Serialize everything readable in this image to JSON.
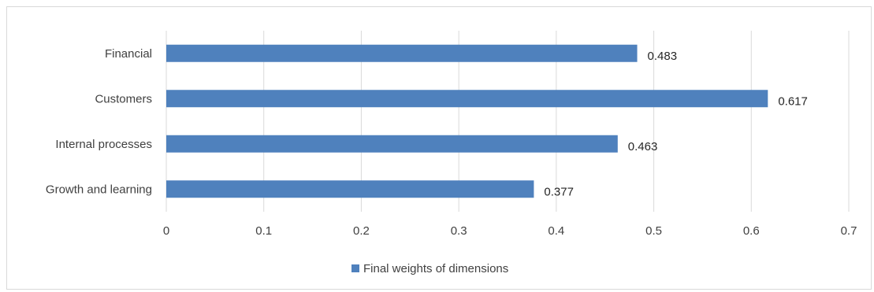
{
  "chart_data": {
    "type": "bar",
    "orientation": "horizontal",
    "categories": [
      "Financial",
      "Customers",
      "Internal processes",
      "Growth and learning"
    ],
    "series": [
      {
        "name": "Final weights of dimensions",
        "values": [
          0.483,
          0.617,
          0.463,
          0.377
        ],
        "color": "#4f81bd"
      }
    ],
    "data_labels": [
      "0.483",
      "0.617",
      "0.463",
      "0.377"
    ],
    "x_ticks": [
      "0",
      "0.1",
      "0.2",
      "0.3",
      "0.4",
      "0.5",
      "0.6",
      "0.7"
    ],
    "xlim": [
      0,
      0.7
    ],
    "grid": true,
    "legend_position": "bottom",
    "title": "",
    "xlabel": "",
    "ylabel": ""
  }
}
